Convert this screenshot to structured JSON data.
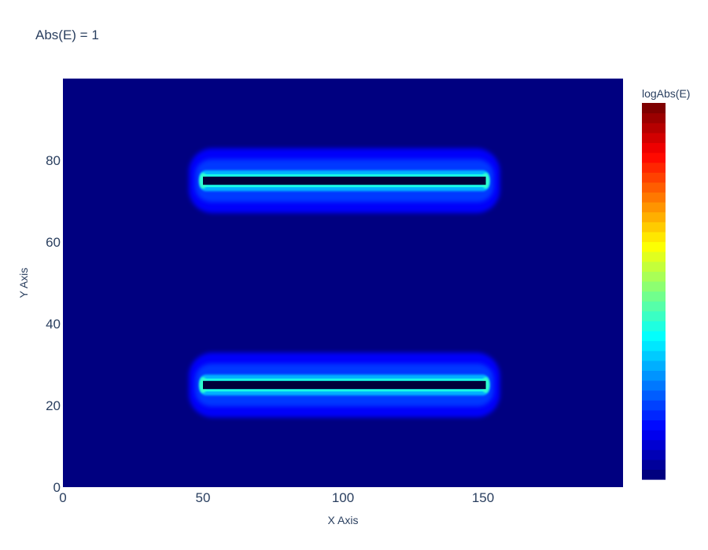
{
  "chart_data": {
    "type": "heatmap",
    "title": "Abs(E) = 1",
    "xlabel": "X Axis",
    "ylabel": "Y Axis",
    "colorbar_title": "logAbs(E)",
    "colorscale": "Jet",
    "xlim": [
      0,
      200
    ],
    "ylim": [
      0,
      100
    ],
    "x_ticks": [
      0,
      50,
      100,
      150
    ],
    "y_ticks": [
      0,
      20,
      40,
      60,
      80
    ],
    "grid": false,
    "background_color": "#000080",
    "colorscale_stops": [
      "#00007f",
      "#0000ff",
      "#007fff",
      "#00ffff",
      "#7fff7f",
      "#ffff00",
      "#ff7f00",
      "#ff0000",
      "#7f0000"
    ],
    "features": [
      {
        "x_start": 50,
        "x_end": 151,
        "y_center": 75,
        "half_height": 1,
        "log_level": 0.4
      },
      {
        "x_start": 50,
        "x_end": 151,
        "y_center": 25,
        "half_height": 1,
        "log_level": 0.4
      }
    ]
  }
}
